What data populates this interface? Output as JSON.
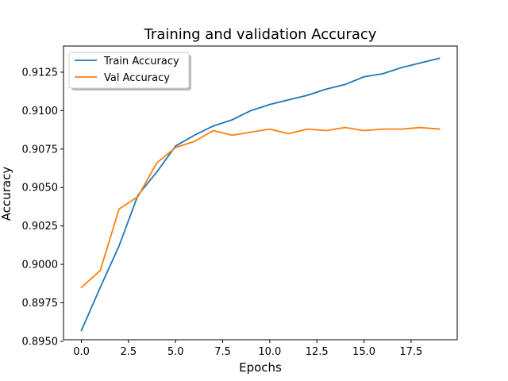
{
  "chart_data": {
    "type": "line",
    "title": "Training and validation Accuracy",
    "xlabel": "Epochs",
    "ylabel": "Accuracy",
    "xlim": [
      -0.95,
      19.95
    ],
    "ylim": [
      0.8951,
      0.9142
    ],
    "x": [
      0,
      1,
      2,
      3,
      4,
      5,
      6,
      7,
      8,
      9,
      10,
      11,
      12,
      13,
      14,
      15,
      16,
      17,
      18,
      19
    ],
    "x_ticks": [
      0.0,
      2.5,
      5.0,
      7.5,
      10.0,
      12.5,
      15.0,
      17.5
    ],
    "x_tick_labels": [
      "0.0",
      "2.5",
      "5.0",
      "7.5",
      "10.0",
      "12.5",
      "15.0",
      "17.5"
    ],
    "y_ticks": [
      0.895,
      0.8975,
      0.9,
      0.9025,
      0.905,
      0.9075,
      0.91,
      0.9125
    ],
    "y_tick_labels": [
      "0.8950",
      "0.8975",
      "0.9000",
      "0.9025",
      "0.9050",
      "0.9075",
      "0.9100",
      "0.9125"
    ],
    "grid": false,
    "legend_position": "upper-left",
    "series": [
      {
        "name": "Train Accuracy",
        "color": "#1f77b4",
        "values": [
          0.8957,
          0.8985,
          0.9012,
          0.9045,
          0.906,
          0.9077,
          0.9084,
          0.909,
          0.9094,
          0.91,
          0.9104,
          0.9107,
          0.911,
          0.9114,
          0.9117,
          0.9122,
          0.9124,
          0.9128,
          0.9131,
          0.9134
        ]
      },
      {
        "name": "Val Accuracy",
        "color": "#ff7f0e",
        "values": [
          0.8985,
          0.8996,
          0.9036,
          0.9044,
          0.9066,
          0.9076,
          0.908,
          0.9087,
          0.9084,
          0.9086,
          0.9088,
          0.9085,
          0.9088,
          0.9087,
          0.9089,
          0.9087,
          0.9088,
          0.9088,
          0.9089,
          0.9088
        ]
      }
    ]
  }
}
